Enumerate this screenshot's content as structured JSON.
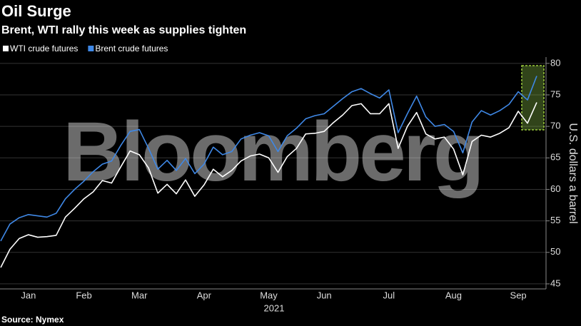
{
  "chart_data": {
    "type": "line",
    "title": "Oil Surge",
    "subtitle": "Brent, WTI rally this week as supplies tighten",
    "watermark": "Bloomberg",
    "source": "Source: Nymex",
    "x_label": "2021",
    "y_label": "U.S. dollars a barrel",
    "categories": [
      null,
      null,
      null,
      "Jan",
      null,
      null,
      null,
      null,
      null,
      "Feb",
      null,
      null,
      null,
      null,
      null,
      "Mar",
      null,
      null,
      null,
      null,
      null,
      null,
      "Apr",
      null,
      null,
      null,
      null,
      null,
      null,
      "May",
      null,
      null,
      null,
      null,
      null,
      "Jun",
      null,
      null,
      null,
      null,
      null,
      null,
      "Jul",
      null,
      null,
      null,
      null,
      null,
      null,
      "Aug",
      null,
      null,
      null,
      null,
      null,
      null,
      "Sep",
      null,
      null
    ],
    "series": [
      {
        "name": "WTI crude futures",
        "color": "#ffffff",
        "values": [
          47.6,
          50.5,
          52.2,
          52.8,
          52.4,
          52.5,
          52.7,
          55.6,
          57.0,
          58.5,
          59.6,
          61.4,
          61.0,
          63.6,
          66.1,
          65.5,
          63.4,
          59.4,
          60.8,
          59.3,
          61.5,
          58.9,
          60.7,
          63.2,
          62.0,
          63.0,
          64.5,
          65.3,
          65.6,
          65.0,
          62.7,
          65.2,
          66.5,
          68.8,
          68.9,
          69.2,
          70.6,
          71.8,
          73.3,
          73.6,
          72.0,
          72.0,
          73.6,
          66.5,
          70.0,
          72.2,
          68.8,
          68.0,
          68.3,
          66.4,
          62.3,
          67.6,
          68.6,
          68.3,
          68.9,
          69.8,
          72.4,
          70.5,
          73.8
        ]
      },
      {
        "name": "Brent crude futures",
        "color": "#3f88e6",
        "values": [
          51.8,
          54.5,
          55.5,
          56.0,
          55.8,
          55.6,
          56.2,
          58.5,
          60.0,
          61.3,
          62.8,
          64.0,
          64.5,
          67.0,
          69.2,
          69.5,
          66.5,
          63.2,
          64.6,
          63.0,
          64.9,
          62.5,
          64.0,
          66.7,
          65.5,
          66.0,
          68.0,
          68.6,
          69.0,
          68.5,
          66.0,
          68.5,
          69.7,
          71.2,
          71.7,
          72.0,
          73.2,
          74.4,
          75.5,
          76.0,
          75.2,
          74.5,
          75.8,
          69.0,
          72.0,
          74.8,
          71.5,
          70.0,
          70.3,
          69.2,
          65.8,
          70.7,
          72.5,
          71.8,
          72.5,
          73.5,
          75.5,
          74.2,
          78.0
        ]
      }
    ],
    "ylim": [
      44.2,
      81
    ],
    "yticks": [
      45,
      50,
      55,
      60,
      65,
      70,
      75,
      80
    ],
    "grid": true,
    "legend": "top-left"
  }
}
